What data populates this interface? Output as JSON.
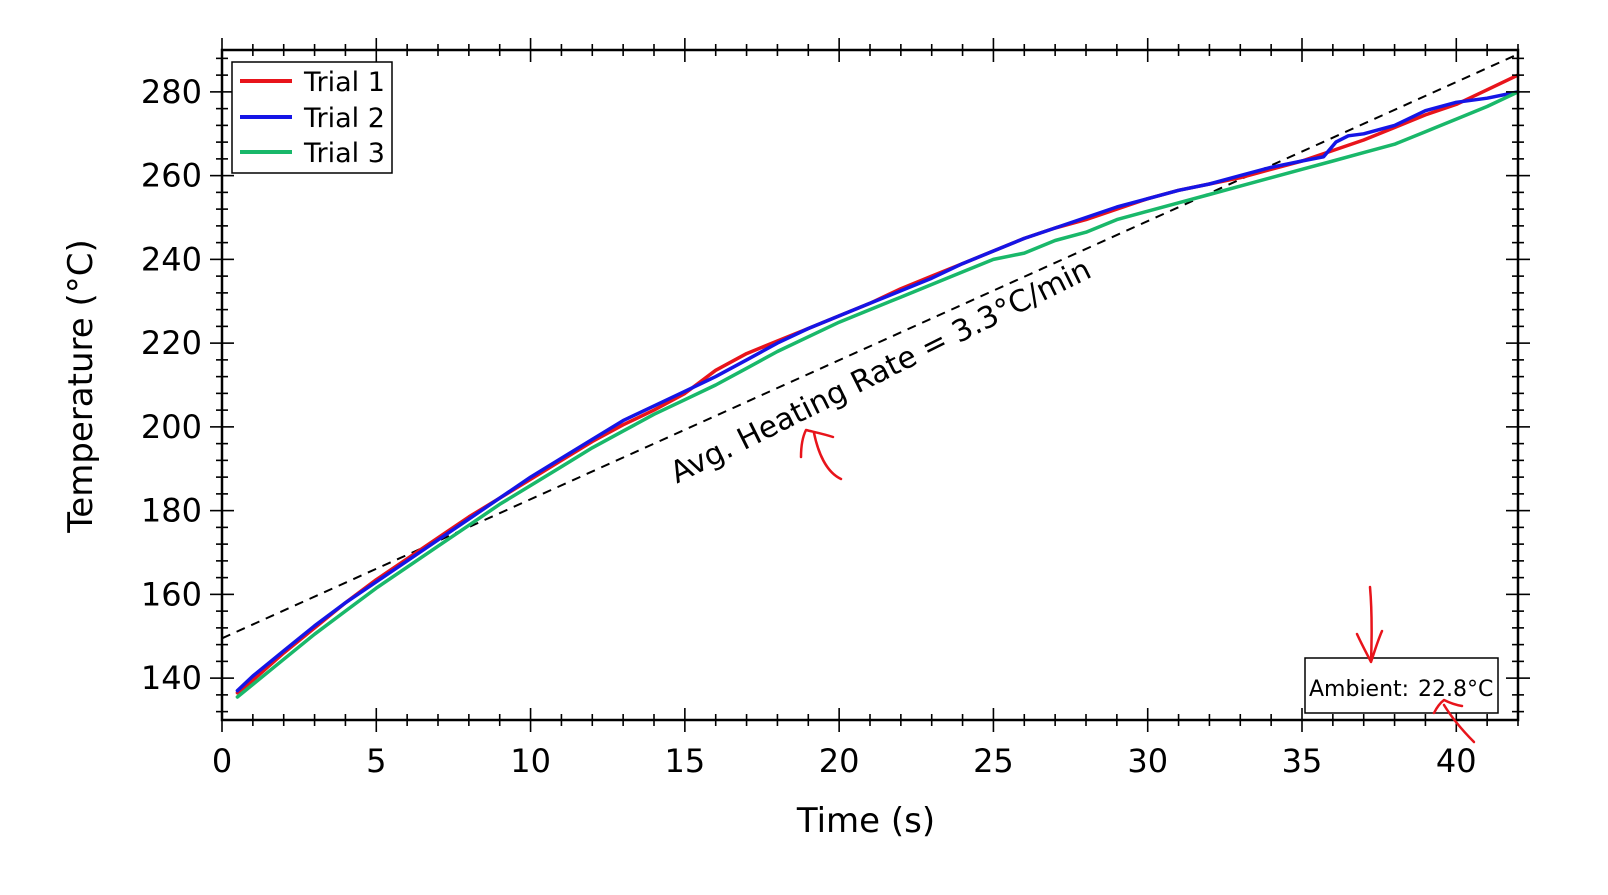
{
  "chart_data": {
    "type": "line",
    "title": "",
    "xlabel": "Time (s)",
    "ylabel": "Temperature (°C)",
    "xlim": [
      0,
      42
    ],
    "ylim": [
      130,
      290
    ],
    "xticks": [
      0,
      5,
      10,
      15,
      20,
      25,
      30,
      35,
      40
    ],
    "yticks": [
      140,
      160,
      180,
      200,
      220,
      240,
      260,
      280
    ],
    "grid": false,
    "legend_position": "top-left",
    "series": [
      {
        "name": "Trial 1",
        "color": "#e8141b",
        "x": [
          0.5,
          1,
          2,
          3,
          4,
          5,
          6,
          7,
          8,
          9,
          10,
          11,
          12,
          13,
          14,
          15,
          16,
          17,
          18,
          19,
          20,
          21,
          22,
          23,
          24,
          25,
          26,
          27,
          28,
          29,
          30,
          31,
          32,
          33,
          34,
          35,
          36,
          37,
          38,
          39,
          40,
          41,
          42
        ],
        "y": [
          136.5,
          139.5,
          146,
          152,
          158,
          163.5,
          168.5,
          173.5,
          178.5,
          183,
          187.5,
          192,
          196.5,
          200.5,
          204,
          208,
          213.5,
          217.5,
          220.5,
          223.5,
          226.5,
          229.5,
          233,
          236,
          239,
          242,
          245,
          247.5,
          249.5,
          252,
          254.5,
          256.5,
          258,
          259.5,
          261.5,
          263.5,
          266,
          268.5,
          271.5,
          274.5,
          277,
          280.5,
          284
        ]
      },
      {
        "name": "Trial 2",
        "color": "#1515e6",
        "x": [
          0.5,
          1,
          2,
          3,
          4,
          5,
          6,
          7,
          8,
          9,
          10,
          11,
          12,
          13,
          14,
          15,
          16,
          17,
          18,
          19,
          20,
          21,
          22,
          23,
          24,
          25,
          26,
          27,
          28,
          29,
          30,
          31,
          32,
          33,
          34,
          35,
          35.7,
          36.1,
          36.5,
          37,
          38,
          39,
          40,
          41,
          42
        ],
        "y": [
          137,
          140.5,
          146.5,
          152.5,
          158,
          163,
          168,
          173,
          178,
          183,
          188,
          192.5,
          197,
          201.5,
          205,
          208.5,
          212,
          216,
          220,
          223.5,
          226.5,
          229.5,
          232.5,
          235.5,
          239,
          242,
          245,
          247.5,
          250,
          252.5,
          254.5,
          256.5,
          258,
          260,
          262,
          263.5,
          264.5,
          268,
          269.5,
          270,
          272,
          275.5,
          277.5,
          278.5,
          280
        ]
      },
      {
        "name": "Trial 3",
        "color": "#19b86a",
        "x": [
          0.5,
          1,
          2,
          3,
          4,
          5,
          6,
          7,
          8,
          9,
          10,
          11,
          12,
          13,
          14,
          15,
          16,
          17,
          18,
          19,
          20,
          21,
          22,
          23,
          24,
          25,
          26,
          27,
          28,
          29,
          30,
          31,
          32,
          33,
          34,
          35,
          36,
          37,
          38,
          39,
          40,
          41,
          42
        ],
        "y": [
          135.5,
          138.5,
          144.5,
          150.5,
          156,
          161.5,
          166.5,
          171.5,
          176.5,
          181.5,
          186,
          190.5,
          195,
          199,
          203,
          206.5,
          210,
          214,
          218,
          221.5,
          225,
          228,
          231,
          234,
          237,
          240,
          241.5,
          244.5,
          246.5,
          249.5,
          251.5,
          253.5,
          255.5,
          257.5,
          259.5,
          261.5,
          263.5,
          265.5,
          267.5,
          270.5,
          273.5,
          276.5,
          280
        ]
      }
    ],
    "reference_line": {
      "label": "Avg. Heating Rate = 3.3°C/min",
      "style": "dashed",
      "color": "#000000",
      "x": [
        0,
        42
      ],
      "y": [
        149.5,
        289
      ]
    },
    "annotations": {
      "ambient_label": "Ambient:",
      "ambient_value": "22.8°C",
      "markup_color": "#e8141b"
    }
  }
}
